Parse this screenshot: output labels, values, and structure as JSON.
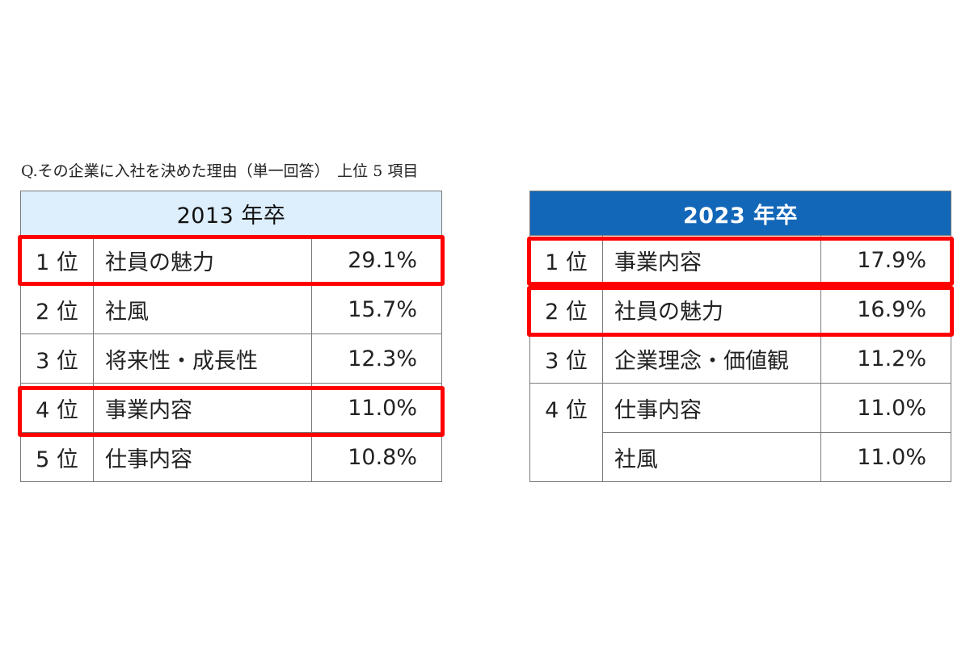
{
  "question": "Q.その企業に入社を決めた理由（単一回答）　上位 5 項目",
  "chart_data": [
    {
      "type": "table",
      "title": "2013 年卒",
      "columns": [
        "rank",
        "item",
        "percent"
      ],
      "rows": [
        {
          "rank": "1 位",
          "item": "社員の魅力",
          "percent": "29.1%",
          "value": 29.1,
          "highlighted": true
        },
        {
          "rank": "2 位",
          "item": "社風",
          "percent": "15.7%",
          "value": 15.7,
          "highlighted": false
        },
        {
          "rank": "3 位",
          "item": "将来性・成長性",
          "percent": "12.3%",
          "value": 12.3,
          "highlighted": false
        },
        {
          "rank": "4 位",
          "item": "事業内容",
          "percent": "11.0%",
          "value": 11.0,
          "highlighted": true
        },
        {
          "rank": "5 位",
          "item": "仕事内容",
          "percent": "10.8%",
          "value": 10.8,
          "highlighted": false
        }
      ]
    },
    {
      "type": "table",
      "title": "2023 年卒",
      "columns": [
        "rank",
        "item",
        "percent"
      ],
      "rows": [
        {
          "rank": "1 位",
          "item": "事業内容",
          "percent": "17.9%",
          "value": 17.9,
          "highlighted": true
        },
        {
          "rank": "2 位",
          "item": "社員の魅力",
          "percent": "16.9%",
          "value": 16.9,
          "highlighted": true
        },
        {
          "rank": "3 位",
          "item": "企業理念・価値観",
          "percent": "11.2%",
          "value": 11.2,
          "highlighted": false
        },
        {
          "rank": "4 位",
          "item": "仕事内容",
          "percent": "11.0%",
          "value": 11.0,
          "highlighted": false
        },
        {
          "rank": "",
          "item": "社風",
          "percent": "11.0%",
          "value": 11.0,
          "highlighted": false
        }
      ]
    }
  ],
  "colors": {
    "header_2013_bg": "#ddeefc",
    "header_2023_bg": "#1367b8",
    "highlight": "#ff0000",
    "border": "#7a7a7a"
  }
}
